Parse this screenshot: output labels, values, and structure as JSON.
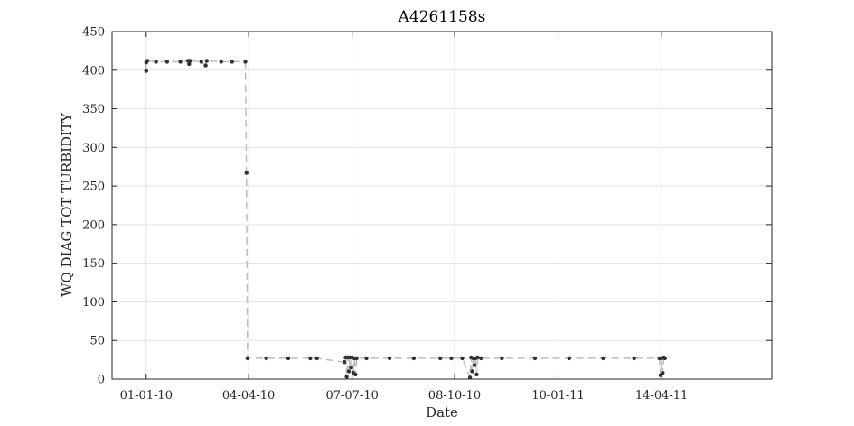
{
  "chart_data": {
    "type": "line",
    "title": "A4261158s",
    "xlabel": "Date",
    "ylabel": "WQ DIAG TOT TURBIDITY",
    "x_axis": {
      "type": "date",
      "min": "2009-12-01",
      "max": "2011-07-23",
      "ticks": [
        "2010-01-01",
        "2010-04-04",
        "2010-07-07",
        "2010-10-08",
        "2011-01-10",
        "2011-04-14"
      ],
      "tick_labels": [
        "01-01-10",
        "04-04-10",
        "07-07-10",
        "08-10-10",
        "10-01-11",
        "14-04-11"
      ]
    },
    "y_axis": {
      "min": 0,
      "max": 450,
      "ticks": [
        0,
        50,
        100,
        150,
        200,
        250,
        300,
        350,
        400,
        450
      ],
      "tick_labels": [
        "0",
        "50",
        "100",
        "150",
        "200",
        "250",
        "300",
        "350",
        "400",
        "450"
      ]
    },
    "grid": true,
    "series": [
      {
        "line_color": "#bdbdbd",
        "marker_color": "#333333",
        "line_style": "dashed",
        "points": [
          [
            "2010-01-01",
            399
          ],
          [
            "2010-01-01",
            410
          ],
          [
            "2010-01-02",
            412
          ],
          [
            "2010-01-10",
            411
          ],
          [
            "2010-01-20",
            411
          ],
          [
            "2010-02-01",
            411
          ],
          [
            "2010-02-08",
            412
          ],
          [
            "2010-02-09",
            408
          ],
          [
            "2010-02-10",
            412
          ],
          [
            "2010-02-20",
            411
          ],
          [
            "2010-02-24",
            406
          ],
          [
            "2010-02-25",
            412
          ],
          [
            "2010-03-10",
            411
          ],
          [
            "2010-03-20",
            411
          ],
          [
            "2010-04-01",
            411
          ],
          [
            "2010-04-02",
            267
          ],
          [
            "2010-04-03",
            27
          ],
          [
            "2010-04-20",
            27
          ],
          [
            "2010-05-10",
            27
          ],
          [
            "2010-05-30",
            27
          ],
          [
            "2010-06-05",
            27
          ],
          [
            "2010-06-30",
            22
          ],
          [
            "2010-07-01",
            28
          ],
          [
            "2010-07-02",
            3
          ],
          [
            "2010-07-03",
            28
          ],
          [
            "2010-07-04",
            10
          ],
          [
            "2010-07-05",
            28
          ],
          [
            "2010-07-06",
            15
          ],
          [
            "2010-07-07",
            28
          ],
          [
            "2010-07-08",
            8
          ],
          [
            "2010-07-09",
            27
          ],
          [
            "2010-07-10",
            6
          ],
          [
            "2010-07-11",
            27
          ],
          [
            "2010-07-20",
            27
          ],
          [
            "2010-08-10",
            27
          ],
          [
            "2010-09-01",
            27
          ],
          [
            "2010-09-25",
            27
          ],
          [
            "2010-10-05",
            27
          ],
          [
            "2010-10-15",
            27
          ],
          [
            "2010-10-22",
            2
          ],
          [
            "2010-10-23",
            28
          ],
          [
            "2010-10-24",
            10
          ],
          [
            "2010-10-25",
            27
          ],
          [
            "2010-10-26",
            18
          ],
          [
            "2010-10-27",
            27
          ],
          [
            "2010-10-28",
            6
          ],
          [
            "2010-10-29",
            28
          ],
          [
            "2010-11-01",
            27
          ],
          [
            "2010-11-20",
            27
          ],
          [
            "2010-12-20",
            27
          ],
          [
            "2011-01-20",
            27
          ],
          [
            "2011-02-20",
            27
          ],
          [
            "2011-03-20",
            27
          ],
          [
            "2011-04-12",
            27
          ],
          [
            "2011-04-13",
            5
          ],
          [
            "2011-04-14",
            27
          ],
          [
            "2011-04-15",
            8
          ],
          [
            "2011-04-16",
            28
          ],
          [
            "2011-04-17",
            27
          ]
        ]
      }
    ]
  }
}
